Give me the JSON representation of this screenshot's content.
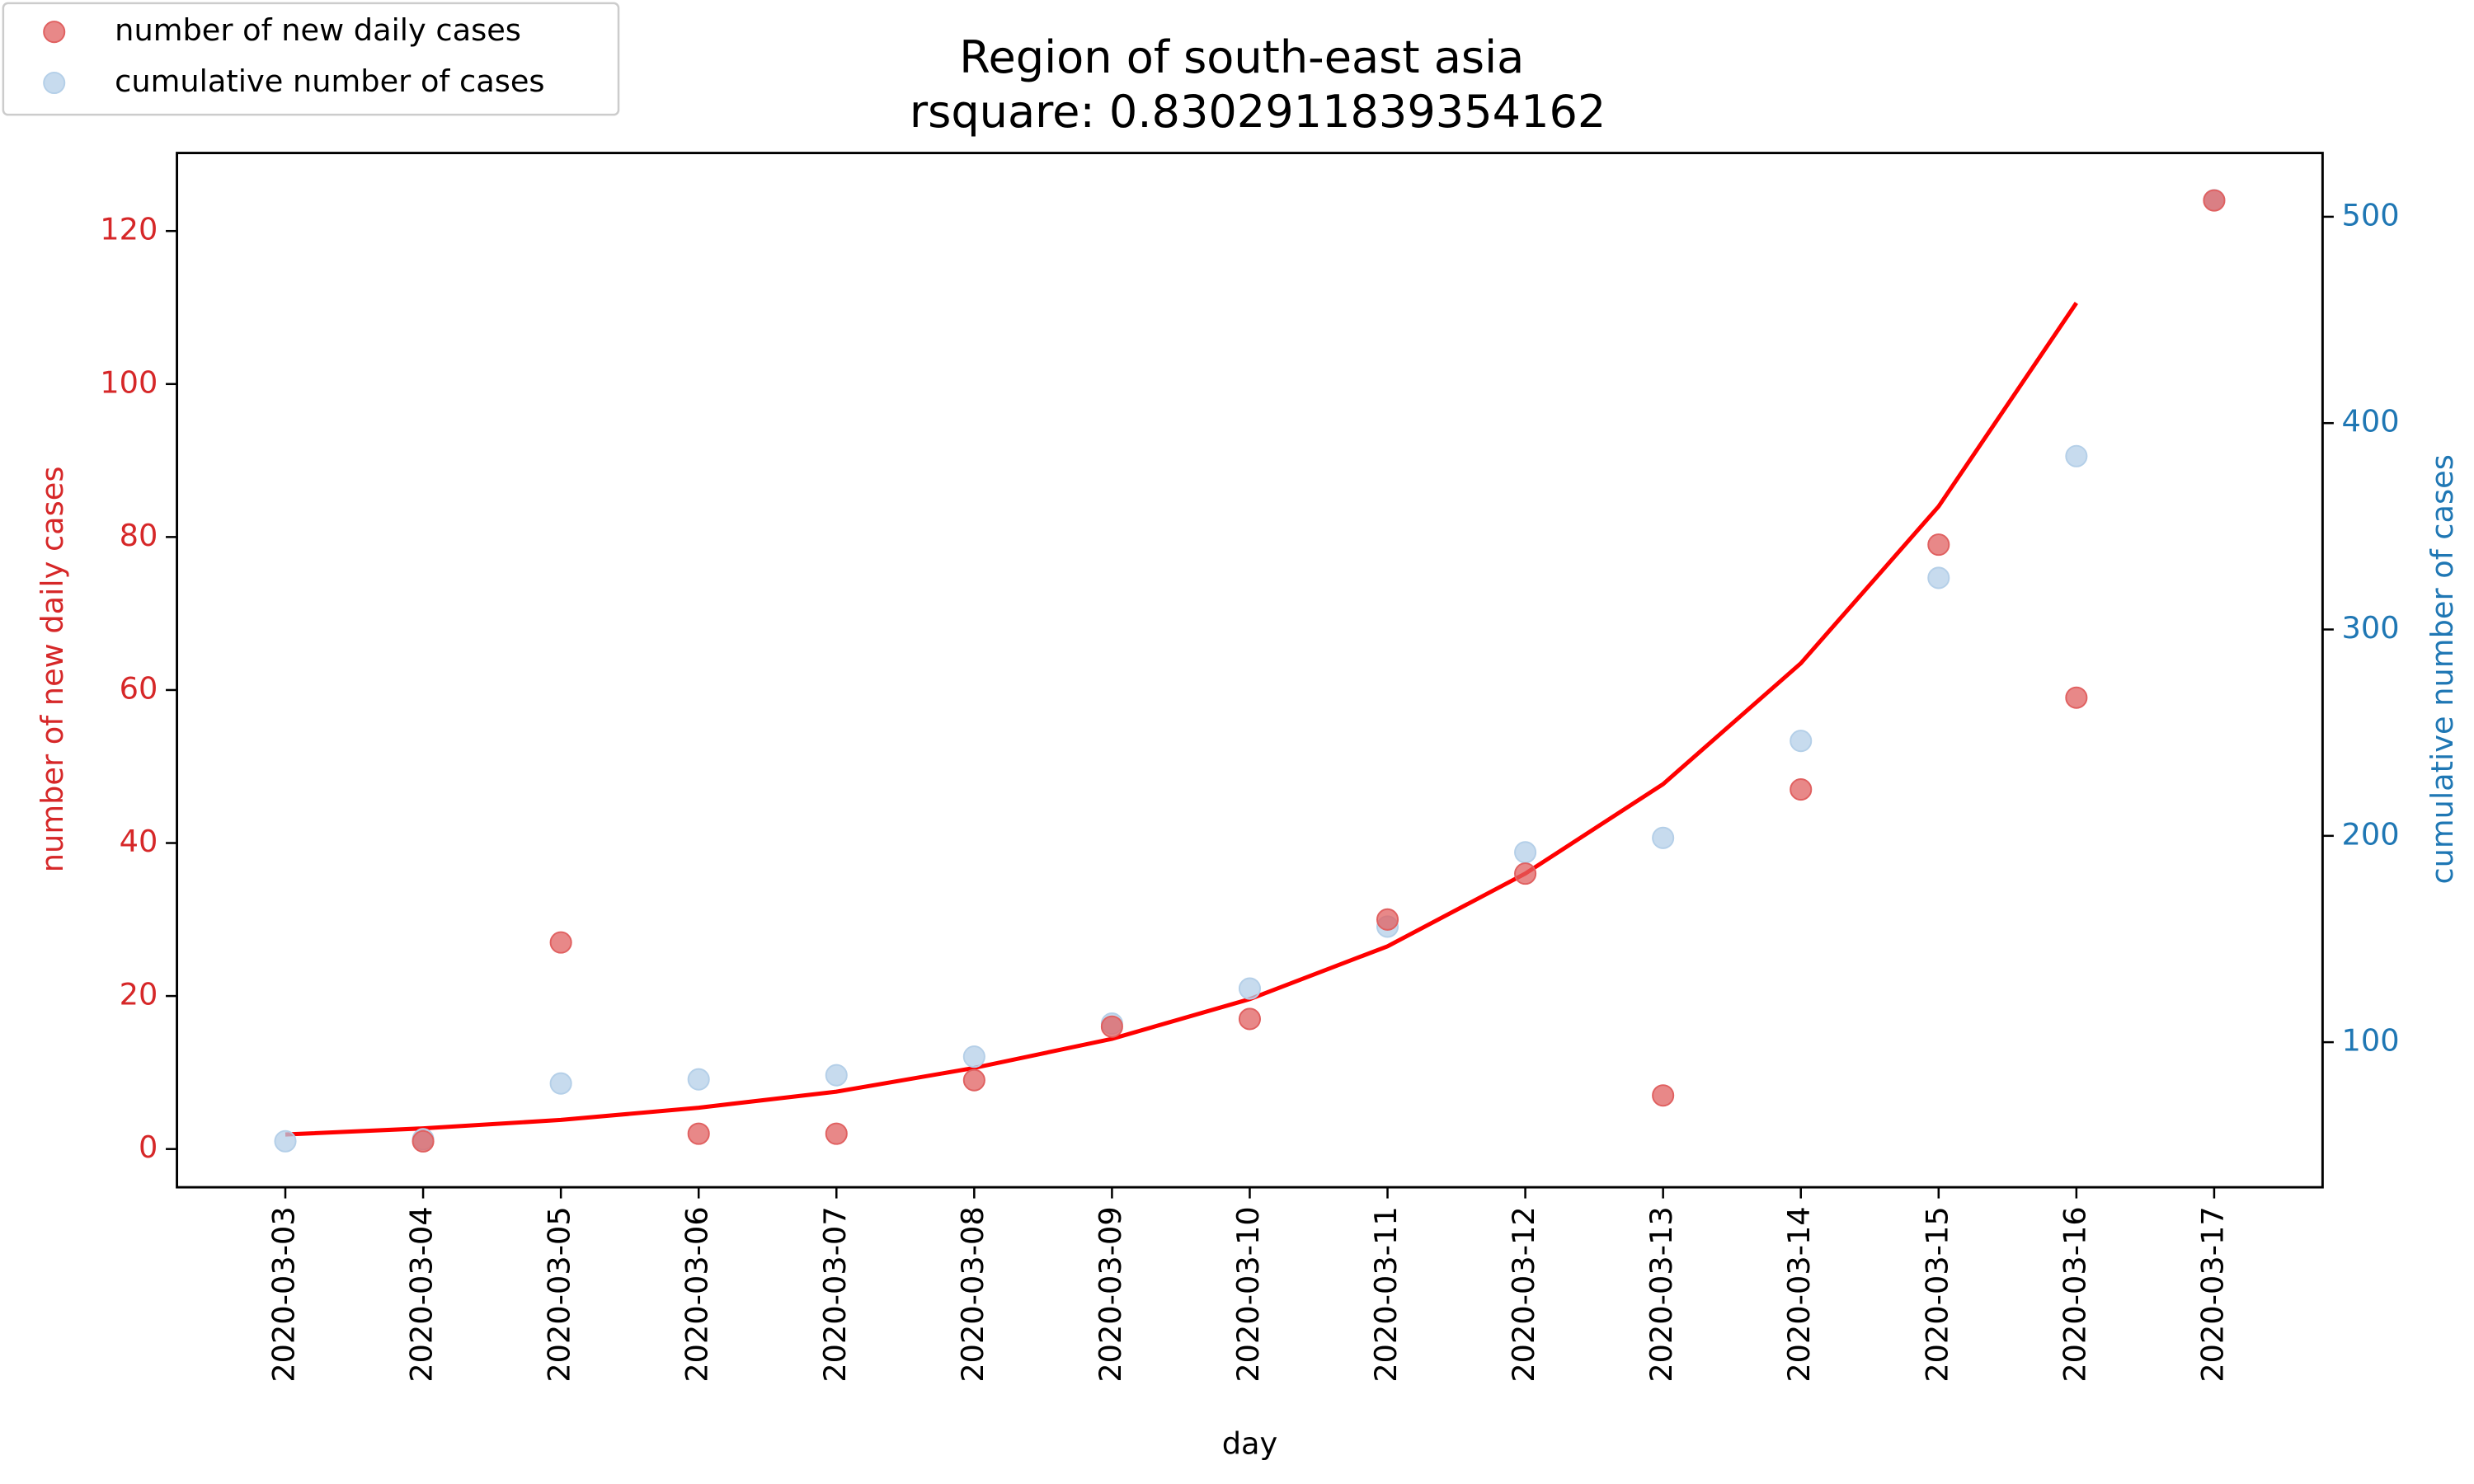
{
  "chart_data": {
    "type": "scatter",
    "title": "Region of south-east asia",
    "subtitle": "rsquare: 0.8302911839354162",
    "x_label": "day",
    "y_label": "number of new daily cases",
    "y2_label": "cumulative number of cases",
    "y_label_color": "#d62728",
    "y2_label_color": "#1f77b4",
    "categories": [
      "2020-03-03",
      "2020-03-04",
      "2020-03-05",
      "2020-03-06",
      "2020-03-07",
      "2020-03-08",
      "2020-03-09",
      "2020-03-10",
      "2020-03-11",
      "2020-03-12",
      "2020-03-13",
      "2020-03-14",
      "2020-03-15",
      "2020-03-16",
      "2020-03-17"
    ],
    "series": [
      {
        "name": "number of new daily cases",
        "type": "scatter",
        "color": "#e06060",
        "values": [
          null,
          1,
          27,
          2,
          2,
          9,
          16,
          17,
          30,
          36,
          7,
          47,
          79,
          59,
          124
        ]
      },
      {
        "name": "cumulative number of cases",
        "type": "scatter",
        "color": "#b4cfe8",
        "axis": "y2",
        "values": [
          52,
          53,
          80,
          82,
          84,
          93,
          109,
          126,
          156,
          192,
          199,
          246,
          325,
          384,
          508
        ]
      },
      {
        "type": "line",
        "color": "#ff0000",
        "values": [
          1.9,
          2.7,
          3.8,
          5.4,
          7.5,
          10.6,
          14.4,
          19.6,
          26.5,
          36,
          47.7,
          63.5,
          84,
          110.6,
          null
        ]
      }
    ],
    "ylim": [
      -5,
      130.2
    ],
    "yticks": [
      0,
      20,
      40,
      60,
      80,
      100,
      120
    ],
    "y2lim": [
      29.7,
      530.9
    ],
    "y2ticks": [
      100,
      200,
      300,
      400,
      500
    ],
    "legend": "upper left"
  }
}
